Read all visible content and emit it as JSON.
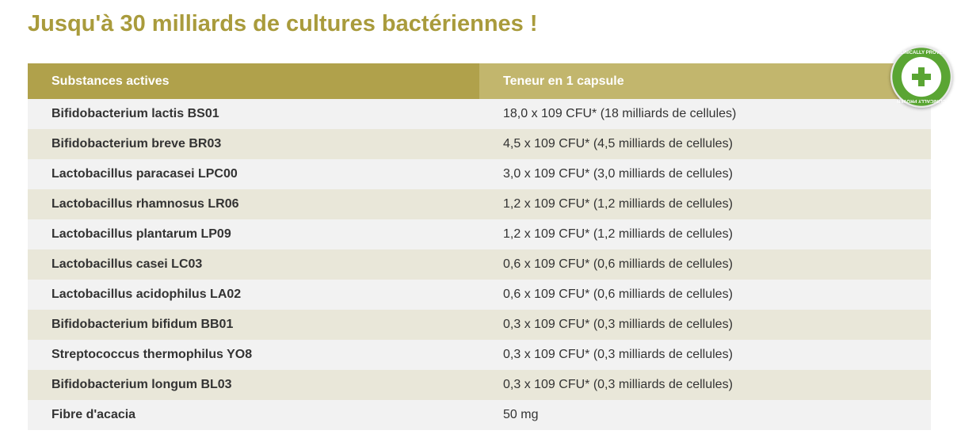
{
  "title": "Jusqu'à 30 milliards de cultures bactériennes !",
  "table": {
    "headers": [
      "Substances actives",
      "Teneur en 1 capsule"
    ],
    "rows": [
      [
        "Bifidobacterium lactis BS01",
        "18,0 x 109 CFU* (18 milliards de cellules)"
      ],
      [
        "Bifidobacterium breve BR03",
        "4,5 x 109 CFU* (4,5 milliards de cellules)"
      ],
      [
        "Lactobacillus paracasei LPC00",
        "3,0 x 109 CFU* (3,0 milliards de cellules)"
      ],
      [
        "Lactobacillus rhamnosus LR06",
        "1,2 x 109 CFU* (1,2 milliards de cellules)"
      ],
      [
        "Lactobacillus plantarum LP09",
        "1,2 x 109 CFU* (1,2 milliards de cellules)"
      ],
      [
        "Lactobacillus casei LC03",
        "0,6 x 109 CFU* (0,6 milliards de cellules)"
      ],
      [
        "Lactobacillus acidophilus LA02",
        "0,6 x 109 CFU* (0,6 milliards de cellules)"
      ],
      [
        "Bifidobacterium bifidum BB01",
        "0,3 x 109 CFU* (0,3 milliards de cellules)"
      ],
      [
        "Streptococcus thermophilus YO8",
        "0,3 x 109 CFU* (0,3 milliards de cellules)"
      ],
      [
        "Bifidobacterium longum BL03",
        "0,3 x 109 CFU* (0,3 milliards de cellules)"
      ],
      [
        "Fibre d'acacia",
        "50 mg"
      ]
    ]
  },
  "badge": {
    "text": "CLINICALLY PROVEN"
  },
  "colors": {
    "title": "#a99b3c",
    "header_left": "#b0a14b",
    "header_right": "#c2b66d",
    "badge": "#5aa533"
  }
}
